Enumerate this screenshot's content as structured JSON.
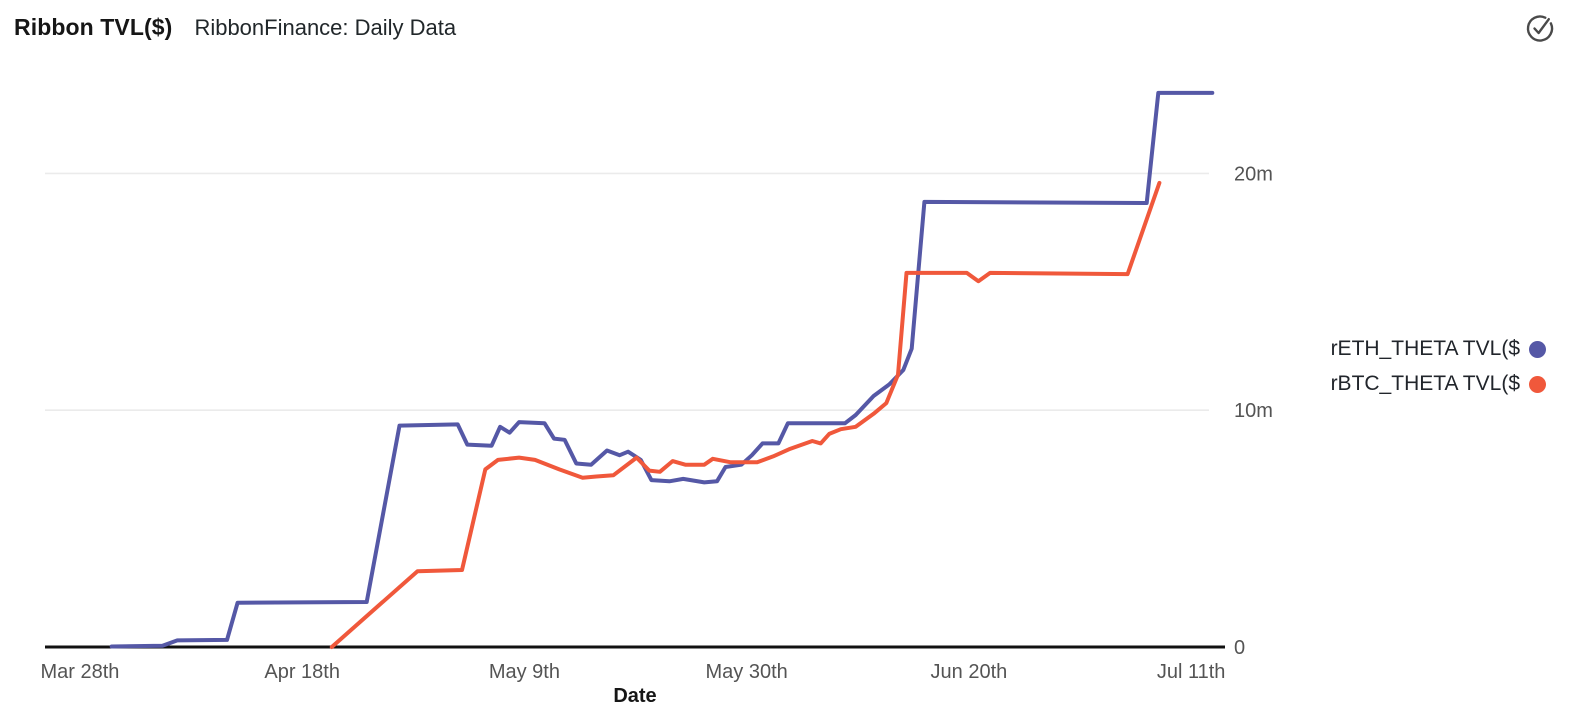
{
  "header": {
    "title": "Ribbon TVL($)",
    "subtitle": "RibbonFinance: Daily Data"
  },
  "toolbar": {
    "check_icon": "check-circle",
    "icon_color": "#4a4a4a"
  },
  "colors": {
    "background": "#ffffff",
    "axis_line": "#111111",
    "gridline": "#ebebeb",
    "tick_text": "#545454",
    "series_eth": "#5558A6",
    "series_btc": "#F0583B"
  },
  "chart_data": {
    "type": "line",
    "title": "Ribbon TVL($)",
    "subtitle": "RibbonFinance: Daily Data",
    "xlabel": "Date",
    "ylabel": "",
    "units": "USD millions (TVL)",
    "grid": "horizontal only",
    "legend_position": "right",
    "x_axis": {
      "kind": "date",
      "tick_labels": [
        "Mar 28th",
        "Apr 18th",
        "May 9th",
        "May 30th",
        "Jun 20th",
        "Jul 11th"
      ],
      "tick_days": [
        0,
        21,
        42,
        63,
        84,
        105
      ],
      "domain_days": [
        -3.3,
        108.2
      ]
    },
    "y_axis": {
      "tick_values": [
        0,
        10,
        20
      ],
      "tick_labels": [
        "0",
        "10m",
        "20m"
      ],
      "gridline_values": [
        10,
        20
      ],
      "domain": [
        0,
        24.2
      ]
    },
    "series": [
      {
        "name": "rETH_THETA",
        "label": "rETH_THETA TVL($",
        "color": "#5558A6",
        "points_day_value_m": [
          [
            3.0,
            0.02
          ],
          [
            7.8,
            0.05
          ],
          [
            9.2,
            0.28
          ],
          [
            13.9,
            0.3
          ],
          [
            14.9,
            1.87
          ],
          [
            27.1,
            1.9
          ],
          [
            30.2,
            9.35
          ],
          [
            35.7,
            9.4
          ],
          [
            36.6,
            8.55
          ],
          [
            38.9,
            8.5
          ],
          [
            39.7,
            9.3
          ],
          [
            40.6,
            9.05
          ],
          [
            41.5,
            9.5
          ],
          [
            43.9,
            9.45
          ],
          [
            44.8,
            8.8
          ],
          [
            45.8,
            8.75
          ],
          [
            46.9,
            7.75
          ],
          [
            48.3,
            7.7
          ],
          [
            49.8,
            8.3
          ],
          [
            51.0,
            8.1
          ],
          [
            51.8,
            8.25
          ],
          [
            53.0,
            7.9
          ],
          [
            54.0,
            7.05
          ],
          [
            55.7,
            7.0
          ],
          [
            57.0,
            7.1
          ],
          [
            59.0,
            6.95
          ],
          [
            60.2,
            7.0
          ],
          [
            61.0,
            7.6
          ],
          [
            62.5,
            7.7
          ],
          [
            63.5,
            8.1
          ],
          [
            64.5,
            8.6
          ],
          [
            66.0,
            8.6
          ],
          [
            66.9,
            9.45
          ],
          [
            72.3,
            9.45
          ],
          [
            73.3,
            9.8
          ],
          [
            75.0,
            10.6
          ],
          [
            76.5,
            11.1
          ],
          [
            77.8,
            11.7
          ],
          [
            78.6,
            12.6
          ],
          [
            79.8,
            18.8
          ],
          [
            100.8,
            18.75
          ],
          [
            101.9,
            23.4
          ],
          [
            107.0,
            23.4
          ]
        ]
      },
      {
        "name": "rBTC_THETA",
        "label": "rBTC_THETA TVL($",
        "color": "#F0583B",
        "points_day_value_m": [
          [
            23.8,
            0.0
          ],
          [
            31.9,
            3.2
          ],
          [
            36.1,
            3.25
          ],
          [
            38.3,
            7.5
          ],
          [
            39.5,
            7.9
          ],
          [
            41.5,
            8.0
          ],
          [
            43.0,
            7.9
          ],
          [
            45.3,
            7.5
          ],
          [
            47.5,
            7.15
          ],
          [
            48.8,
            7.2
          ],
          [
            50.4,
            7.25
          ],
          [
            52.6,
            8.0
          ],
          [
            53.8,
            7.45
          ],
          [
            54.8,
            7.4
          ],
          [
            56.0,
            7.85
          ],
          [
            57.2,
            7.7
          ],
          [
            59.0,
            7.7
          ],
          [
            59.8,
            7.95
          ],
          [
            61.5,
            7.8
          ],
          [
            64.0,
            7.8
          ],
          [
            65.5,
            8.05
          ],
          [
            67.0,
            8.35
          ],
          [
            69.2,
            8.7
          ],
          [
            70.0,
            8.6
          ],
          [
            70.8,
            9.0
          ],
          [
            71.9,
            9.2
          ],
          [
            73.3,
            9.3
          ],
          [
            75.0,
            9.85
          ],
          [
            76.2,
            10.3
          ],
          [
            77.3,
            11.5
          ],
          [
            78.1,
            15.8
          ],
          [
            83.8,
            15.8
          ],
          [
            84.9,
            15.45
          ],
          [
            86.0,
            15.8
          ],
          [
            99.0,
            15.75
          ],
          [
            102.0,
            19.6
          ]
        ]
      }
    ]
  }
}
